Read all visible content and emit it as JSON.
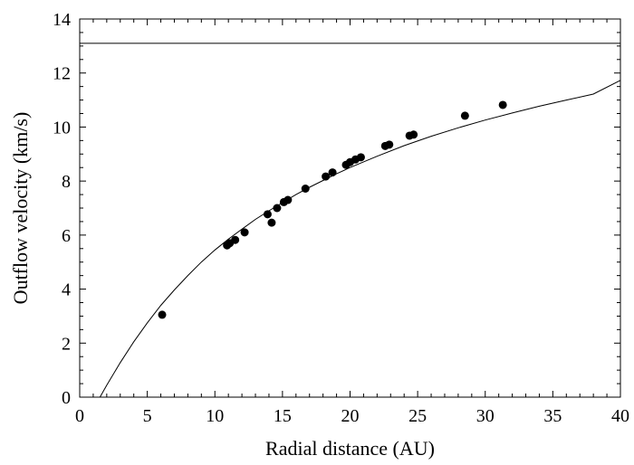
{
  "chart_data": {
    "type": "scatter",
    "xlabel": "Radial distance (AU)",
    "ylabel": "Outflow velocity (km/s)",
    "xlim": [
      0,
      40
    ],
    "ylim": [
      0,
      14
    ],
    "xticks": [
      0,
      5,
      10,
      15,
      20,
      25,
      30,
      35,
      40
    ],
    "yticks": [
      0,
      2,
      4,
      6,
      8,
      10,
      12,
      14
    ],
    "grid": false,
    "legend": "none",
    "colors": {
      "points": "#000000",
      "curve": "#000000",
      "frame": "#000000"
    },
    "series": [
      {
        "kind": "points",
        "x": [
          6.1,
          10.9,
          11.1,
          11.5,
          12.2,
          13.9,
          14.2,
          14.6,
          15.1,
          15.4,
          16.7,
          18.2,
          18.7,
          19.7,
          20.0,
          20.4,
          20.8,
          22.6,
          22.9,
          24.4,
          24.7,
          28.5,
          31.3
        ],
        "y": [
          3.05,
          5.62,
          5.7,
          5.82,
          6.1,
          6.77,
          6.46,
          7.0,
          7.22,
          7.3,
          7.72,
          8.17,
          8.32,
          8.6,
          8.7,
          8.8,
          8.88,
          9.3,
          9.35,
          9.68,
          9.72,
          10.42,
          10.82
        ]
      },
      {
        "kind": "curve",
        "x": [
          1.5,
          2.0,
          3.0,
          4.0,
          5.0,
          6.0,
          7.0,
          8.0,
          9.0,
          10.0,
          11.0,
          12.0,
          13.0,
          14.0,
          15.0,
          16.0,
          17.0,
          18.0,
          19.0,
          20.0,
          22.0,
          24.0,
          26.0,
          28.0,
          30.0,
          32.0,
          34.0,
          36.0,
          38.0,
          40.0
        ],
        "y": [
          0.0,
          0.44,
          1.28,
          2.05,
          2.75,
          3.4,
          3.97,
          4.5,
          5.0,
          5.45,
          5.85,
          6.22,
          6.58,
          6.9,
          7.2,
          7.5,
          7.77,
          8.02,
          8.27,
          8.5,
          8.92,
          9.31,
          9.66,
          9.97,
          10.26,
          10.52,
          10.77,
          11.0,
          11.22,
          11.73
        ]
      },
      {
        "kind": "hline",
        "y": 13.1
      }
    ]
  }
}
